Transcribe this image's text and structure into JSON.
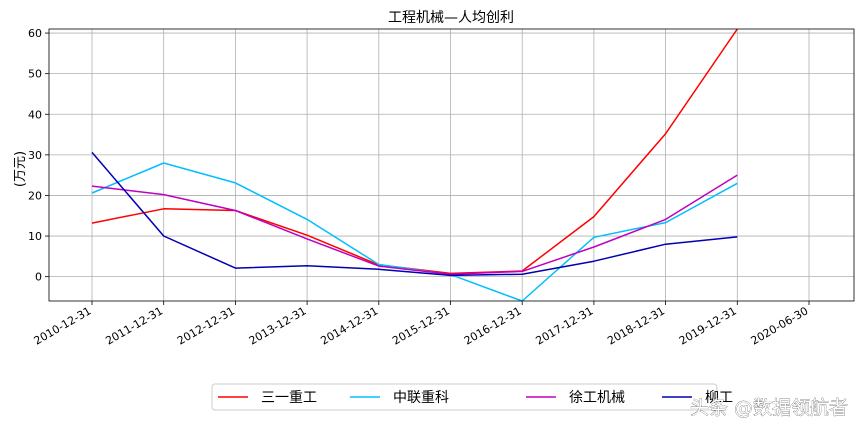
{
  "chart_data": {
    "type": "line",
    "title": "工程机械—人均创利",
    "xlabel": "",
    "ylabel": "(万元)",
    "categories": [
      "2010-12-31",
      "2011-12-31",
      "2012-12-31",
      "2013-12-31",
      "2014-12-31",
      "2015-12-31",
      "2016-12-31",
      "2017-12-31",
      "2018-12-31",
      "2019-12-31",
      "2020-06-30"
    ],
    "ylim": [
      -6,
      61
    ],
    "yticks": [
      0,
      10,
      20,
      30,
      40,
      50,
      60
    ],
    "grid": true,
    "legend_position": "bottom-center",
    "series": [
      {
        "name": "三一重工",
        "color": "#ff0000",
        "values": [
          13.2,
          16.7,
          16.3,
          10.2,
          2.9,
          0.8,
          1.4,
          14.8,
          35.2,
          61.0,
          null
        ]
      },
      {
        "name": "中联重科",
        "color": "#00bfff",
        "values": [
          20.6,
          28.0,
          23.1,
          14.1,
          3.0,
          0.5,
          -6.0,
          9.7,
          13.3,
          23.0,
          null
        ]
      },
      {
        "name": "徐工机械",
        "color": "#bf00bf",
        "values": [
          22.3,
          20.2,
          16.3,
          9.3,
          2.6,
          0.6,
          1.3,
          7.3,
          14.1,
          25.0,
          null
        ]
      },
      {
        "name": "柳工",
        "color": "#0000b4",
        "values": [
          30.6,
          10.0,
          2.1,
          2.7,
          1.8,
          0.3,
          0.6,
          3.8,
          8.0,
          9.8,
          null
        ]
      }
    ]
  },
  "watermark": "头条 @数据领航者"
}
